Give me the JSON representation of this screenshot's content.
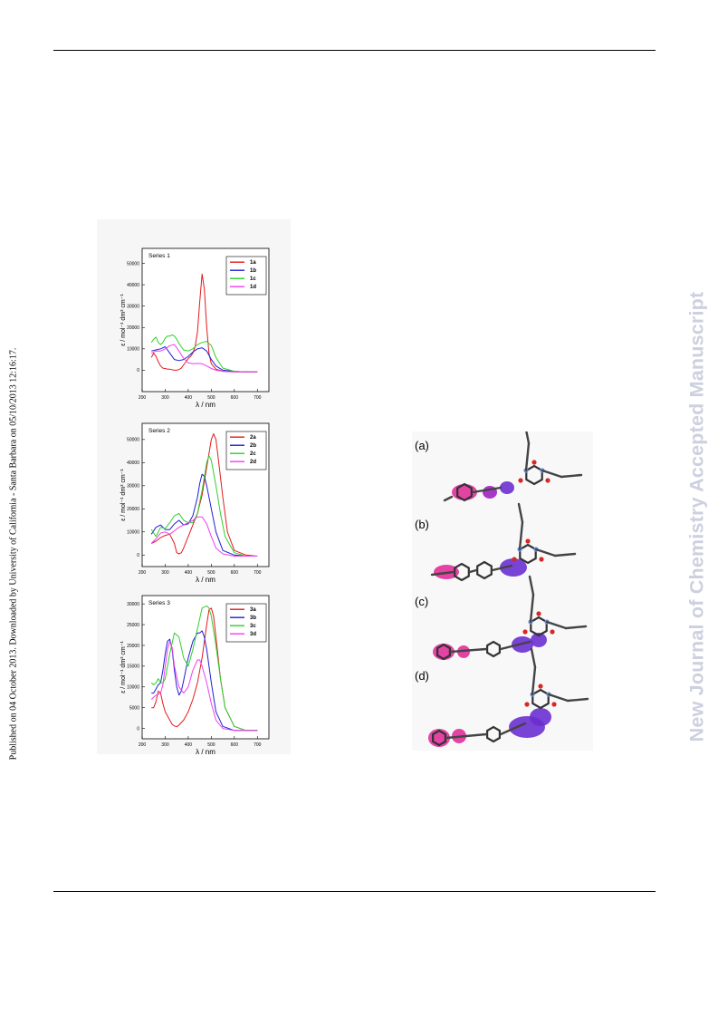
{
  "sidebar_left": "Published on 04 October 2013. Downloaded by University of California - Santa Barbara on 05/10/2013 12:16:17.",
  "sidebar_right": "New Journal of Chemistry Accepted Manuscript",
  "colors": {
    "a": "#e41a1c",
    "b": "#1f1fd6",
    "c": "#2bd12b",
    "d": "#ee3fee"
  },
  "chart_data": [
    {
      "type": "line",
      "title": "Series 1",
      "xlabel": "λ / nm",
      "ylabel": "ε / mol⁻¹ dm³ cm⁻¹",
      "xlim": [
        200,
        750
      ],
      "ylim": [
        -10000,
        57000
      ],
      "xticks": [
        200,
        300,
        400,
        500,
        600,
        700
      ],
      "yticks": [
        0,
        10000,
        20000,
        30000,
        40000,
        50000
      ],
      "legend_position": "top-right",
      "series": [
        {
          "name": "1a",
          "x": [
            240,
            250,
            260,
            270,
            280,
            290,
            300,
            310,
            320,
            330,
            340,
            350,
            360,
            370,
            380,
            390,
            400,
            410,
            420,
            430,
            440,
            450,
            460,
            470,
            480,
            490,
            500,
            520,
            550,
            600,
            650,
            700
          ],
          "y": [
            6000,
            8000,
            6500,
            4000,
            2000,
            1000,
            800,
            500,
            500,
            200,
            0,
            0,
            300,
            1000,
            2500,
            4000,
            5500,
            6500,
            8000,
            11000,
            18000,
            32000,
            45000,
            38000,
            20000,
            8000,
            3000,
            500,
            -500,
            -800,
            -800,
            -800
          ]
        },
        {
          "name": "1b",
          "x": [
            240,
            260,
            280,
            300,
            320,
            340,
            360,
            380,
            400,
            420,
            440,
            460,
            480,
            500,
            520,
            550,
            600,
            650,
            700
          ],
          "y": [
            9000,
            9500,
            10000,
            11000,
            8000,
            5000,
            4500,
            5000,
            6500,
            8500,
            10000,
            10500,
            9000,
            5000,
            2000,
            0,
            -500,
            -800,
            -800
          ]
        },
        {
          "name": "1c",
          "x": [
            240,
            250,
            260,
            270,
            280,
            290,
            300,
            310,
            320,
            330,
            340,
            350,
            360,
            380,
            400,
            420,
            440,
            460,
            480,
            500,
            520,
            550,
            600,
            650,
            700
          ],
          "y": [
            13000,
            14500,
            15500,
            13000,
            12000,
            13000,
            15000,
            16000,
            16000,
            16500,
            16000,
            14500,
            12500,
            9500,
            9000,
            10000,
            12000,
            13000,
            13500,
            11500,
            6000,
            1000,
            -500,
            -800,
            -800
          ]
        },
        {
          "name": "1d",
          "x": [
            240,
            260,
            280,
            300,
            320,
            340,
            360,
            380,
            400,
            420,
            440,
            460,
            480,
            500,
            520,
            550,
            600,
            650,
            700
          ],
          "y": [
            8000,
            9000,
            9000,
            10000,
            11500,
            12000,
            9000,
            5500,
            3500,
            3000,
            3200,
            3000,
            2000,
            800,
            0,
            -500,
            -800,
            -800,
            -800
          ]
        }
      ]
    },
    {
      "type": "line",
      "title": "Series 2",
      "xlabel": "λ / nm",
      "ylabel": "ε / mol⁻¹ dm³ cm⁻¹",
      "xlim": [
        200,
        750
      ],
      "ylim": [
        -5000,
        57000
      ],
      "xticks": [
        200,
        300,
        400,
        500,
        600,
        700
      ],
      "yticks": [
        0,
        10000,
        20000,
        30000,
        40000,
        50000
      ],
      "legend_position": "top-right",
      "series": [
        {
          "name": "2a",
          "x": [
            240,
            260,
            280,
            300,
            320,
            340,
            350,
            360,
            370,
            380,
            400,
            420,
            440,
            460,
            480,
            500,
            510,
            520,
            530,
            550,
            570,
            600,
            650,
            700
          ],
          "y": [
            5000,
            6000,
            7500,
            8500,
            9000,
            5000,
            1000,
            500,
            1000,
            3000,
            8000,
            13000,
            18000,
            26000,
            38000,
            50000,
            52500,
            50000,
            42000,
            25000,
            10000,
            2000,
            0,
            -500
          ]
        },
        {
          "name": "2b",
          "x": [
            240,
            260,
            280,
            300,
            320,
            340,
            360,
            380,
            400,
            420,
            440,
            450,
            460,
            470,
            480,
            500,
            520,
            550,
            600,
            650,
            700
          ],
          "y": [
            9000,
            12000,
            13000,
            11000,
            11000,
            13500,
            15000,
            13000,
            13500,
            17000,
            25000,
            31000,
            35000,
            34000,
            30000,
            20000,
            10000,
            2000,
            0,
            -500,
            -500
          ]
        },
        {
          "name": "2c",
          "x": [
            240,
            260,
            280,
            300,
            320,
            340,
            360,
            380,
            400,
            420,
            440,
            460,
            480,
            490,
            500,
            520,
            540,
            560,
            600,
            650,
            700
          ],
          "y": [
            11000,
            8000,
            12000,
            11500,
            14000,
            17000,
            18000,
            15000,
            14000,
            14000,
            18000,
            28000,
            40000,
            43000,
            41000,
            30000,
            18000,
            8000,
            1000,
            -500,
            -500
          ]
        },
        {
          "name": "2d",
          "x": [
            240,
            260,
            280,
            300,
            320,
            340,
            360,
            380,
            400,
            420,
            440,
            460,
            480,
            500,
            520,
            550,
            600,
            650,
            700
          ],
          "y": [
            5000,
            7000,
            9500,
            10000,
            9000,
            10500,
            12000,
            13000,
            14000,
            15000,
            16500,
            16500,
            13500,
            8000,
            3000,
            500,
            -500,
            -500,
            -500
          ]
        }
      ]
    },
    {
      "type": "line",
      "title": "Series 3",
      "xlabel": "λ / nm",
      "ylabel": "ε / mol⁻¹ dm³ cm⁻¹",
      "xlim": [
        200,
        750
      ],
      "ylim": [
        -2500,
        32000
      ],
      "xticks": [
        200,
        300,
        400,
        500,
        600,
        700
      ],
      "yticks": [
        0,
        5000,
        10000,
        15000,
        20000,
        25000,
        30000
      ],
      "legend_position": "top-right",
      "series": [
        {
          "name": "3a",
          "x": [
            240,
            250,
            260,
            270,
            280,
            290,
            300,
            310,
            320,
            330,
            340,
            350,
            360,
            380,
            400,
            420,
            440,
            460,
            480,
            490,
            500,
            510,
            520,
            540,
            560,
            600,
            650,
            700
          ],
          "y": [
            5000,
            5000,
            6500,
            9000,
            8500,
            6000,
            4000,
            3000,
            2000,
            1000,
            600,
            400,
            800,
            2000,
            4000,
            7000,
            11000,
            17000,
            25000,
            28500,
            29000,
            27000,
            22000,
            12000,
            5000,
            500,
            -500,
            -500
          ]
        },
        {
          "name": "3b",
          "x": [
            240,
            250,
            260,
            270,
            280,
            290,
            300,
            310,
            320,
            330,
            340,
            350,
            360,
            370,
            380,
            400,
            420,
            440,
            450,
            460,
            470,
            480,
            500,
            520,
            550,
            600,
            650,
            700
          ],
          "y": [
            8500,
            8500,
            9500,
            10500,
            11000,
            14000,
            18000,
            21000,
            21500,
            19000,
            14000,
            10000,
            8000,
            9000,
            11500,
            17000,
            21000,
            23000,
            23000,
            23500,
            22000,
            19000,
            11000,
            4000,
            500,
            -500,
            -500,
            -500
          ]
        },
        {
          "name": "3c",
          "x": [
            240,
            250,
            260,
            270,
            280,
            290,
            300,
            320,
            340,
            360,
            380,
            400,
            420,
            440,
            460,
            480,
            490,
            500,
            520,
            540,
            560,
            600,
            650,
            700
          ],
          "y": [
            11000,
            10500,
            11000,
            12000,
            11000,
            11000,
            12000,
            18000,
            23000,
            22000,
            17000,
            15000,
            19000,
            24000,
            29000,
            29500,
            29000,
            27000,
            20000,
            12000,
            5000,
            500,
            -500,
            -500
          ]
        },
        {
          "name": "3d",
          "x": [
            240,
            260,
            280,
            290,
            300,
            310,
            320,
            330,
            340,
            360,
            380,
            400,
            420,
            440,
            450,
            460,
            480,
            500,
            520,
            550,
            600,
            650,
            700
          ],
          "y": [
            7000,
            8000,
            8500,
            10500,
            15000,
            19000,
            21000,
            19500,
            15000,
            10000,
            8500,
            10000,
            14000,
            16500,
            16500,
            15000,
            11000,
            6000,
            2000,
            0,
            -500,
            -500,
            -500
          ]
        }
      ]
    }
  ],
  "molecules": [
    {
      "label": "(a)"
    },
    {
      "label": "(b)"
    },
    {
      "label": "(c)"
    },
    {
      "label": "(d)"
    }
  ]
}
